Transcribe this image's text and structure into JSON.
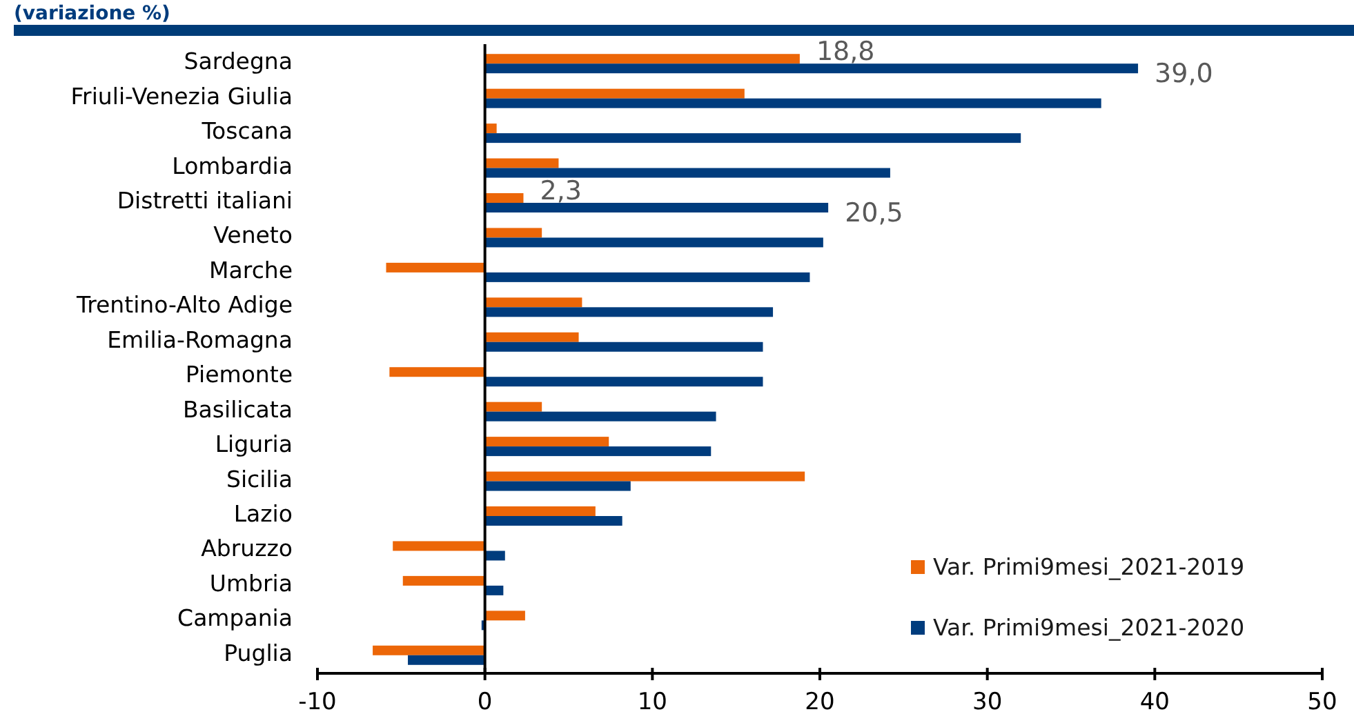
{
  "chart_data": {
    "type": "bar",
    "orientation": "horizontal",
    "title": "(variazione %)",
    "categories": [
      "Sardegna",
      "Friuli-Venezia Giulia",
      "Toscana",
      "Lombardia",
      "Distretti italiani",
      "Veneto",
      "Marche",
      "Trentino-Alto Adige",
      "Emilia-Romagna",
      "Piemonte",
      "Basilicata",
      "Liguria",
      "Sicilia",
      "Lazio",
      "Abruzzo",
      "Umbria",
      "Campania",
      "Puglia"
    ],
    "series": [
      {
        "name": "Var. Primi9mesi_2021-2019",
        "color": "#ec6608",
        "values": [
          18.8,
          15.5,
          0.7,
          4.4,
          2.3,
          3.4,
          -5.9,
          5.8,
          5.6,
          -5.7,
          3.4,
          7.4,
          19.1,
          6.6,
          -5.5,
          -4.9,
          2.4,
          -6.7
        ],
        "value_labels": [
          "18,8",
          null,
          null,
          null,
          "2,3",
          null,
          null,
          null,
          null,
          null,
          null,
          null,
          null,
          null,
          null,
          null,
          null,
          null
        ]
      },
      {
        "name": "Var. Primi9mesi_2021-2020",
        "color": "#003c7d",
        "values": [
          39.0,
          36.8,
          32.0,
          24.2,
          20.5,
          20.2,
          19.4,
          17.2,
          16.6,
          16.6,
          13.8,
          13.5,
          8.7,
          8.2,
          1.2,
          1.1,
          -0.2,
          -4.6
        ],
        "value_labels": [
          "39,0",
          null,
          null,
          null,
          "20,5",
          null,
          null,
          null,
          null,
          null,
          null,
          null,
          null,
          null,
          null,
          null,
          null,
          null
        ]
      }
    ],
    "xlim": [
      -10,
      50
    ],
    "xticks": [
      -10,
      0,
      10,
      20,
      30,
      40,
      50
    ],
    "legend": "bottom right"
  }
}
